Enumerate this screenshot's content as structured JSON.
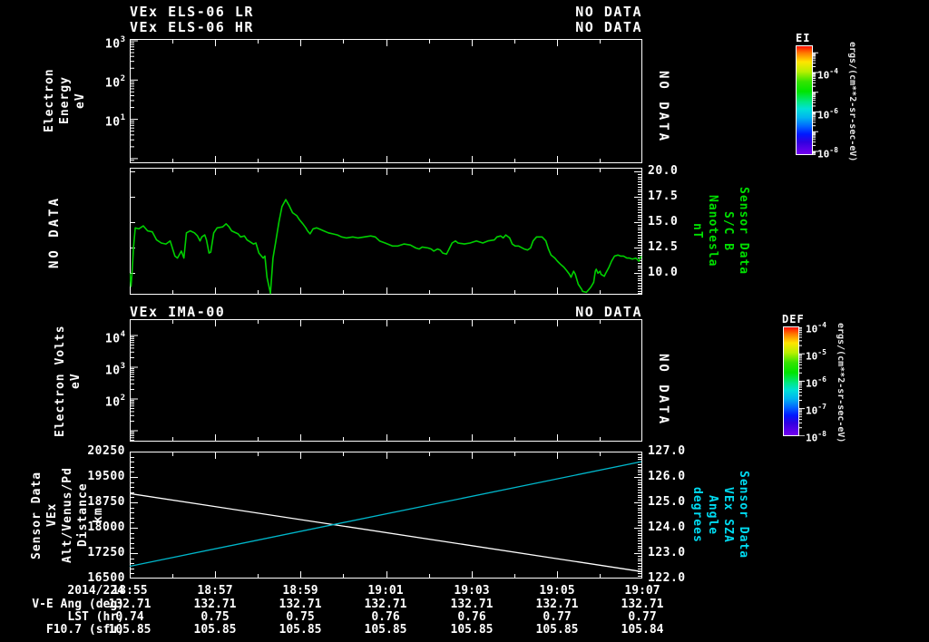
{
  "colors": {
    "background": "#000000",
    "foreground": "#ffffff",
    "mag_line": "#00cf00",
    "mag_label": "#00e000",
    "sza_line": "#00b8cc",
    "sza_label": "#00dcf2",
    "alt_line": "#ffffff"
  },
  "panel1": {
    "title_line1": "VEx ELS-06 LR",
    "status_line1": "NO DATA",
    "title_line2": "VEx ELS-06 HR",
    "status_line2": "NO DATA",
    "ylabel": "Electron Energy\neV",
    "yticks": [
      {
        "base": "10",
        "exp": "3"
      },
      {
        "base": "10",
        "exp": "2"
      },
      {
        "base": "10",
        "exp": "1"
      }
    ],
    "side_status": "NO DATA"
  },
  "panel2": {
    "left_status": "NO DATA",
    "yticks_right": [
      "20.0",
      "17.5",
      "15.0",
      "12.5",
      "10.0"
    ],
    "right_label": "Sensor Data\nS/C B\nNanotesla\nnT"
  },
  "panel3": {
    "title": "VEx IMA-00",
    "status": "NO DATA",
    "ylabel": "Electron Volts\neV",
    "yticks": [
      {
        "base": "10",
        "exp": "4"
      },
      {
        "base": "10",
        "exp": "3"
      },
      {
        "base": "10",
        "exp": "2"
      }
    ],
    "side_status": "NO DATA"
  },
  "panel4": {
    "left_label": "Sensor Data\nVEx Alt/Venus/Pd\nDistance\nkm",
    "yticks_left": [
      "20250",
      "19500",
      "18750",
      "18000",
      "17250",
      "16500"
    ],
    "yticks_right": [
      "127.0",
      "126.0",
      "125.0",
      "124.0",
      "123.0",
      "122.0"
    ],
    "right_label": "Sensor Data\nVEx SZA\nAngle\ndegrees"
  },
  "colorbars": [
    {
      "name": "EI",
      "ticks": [
        {
          "base": "10",
          "exp": "-4"
        },
        {
          "base": "10",
          "exp": "-6"
        },
        {
          "base": "10",
          "exp": "-8"
        }
      ],
      "unit": "ergs/(cm**2-sr-sec-eV)"
    },
    {
      "name": "DEF",
      "ticks": [
        {
          "base": "10",
          "exp": "-4"
        },
        {
          "base": "10",
          "exp": "-5"
        },
        {
          "base": "10",
          "exp": "-6"
        },
        {
          "base": "10",
          "exp": "-7"
        },
        {
          "base": "10",
          "exp": "-8"
        }
      ],
      "unit": "ergs/(cm**2-sr-sec-eV)"
    }
  ],
  "footer": {
    "date": "2014/224",
    "times": [
      "18:55",
      "18:57",
      "18:59",
      "19:01",
      "19:03",
      "19:05",
      "19:07"
    ],
    "rows": [
      {
        "label": "V-E Ang (deg)",
        "values": [
          "132.71",
          "132.71",
          "132.71",
          "132.71",
          "132.71",
          "132.71",
          "132.71"
        ]
      },
      {
        "label": "LST (hr)",
        "values": [
          "0.74",
          "0.75",
          "0.75",
          "0.76",
          "0.76",
          "0.77",
          "0.77"
        ]
      },
      {
        "label": "F10.7 (sfu)",
        "values": [
          "105.85",
          "105.85",
          "105.85",
          "105.85",
          "105.85",
          "105.85",
          "105.84"
        ]
      }
    ]
  },
  "chart_data": [
    {
      "type": "heatmap",
      "title": "VEx ELS-06 LR / VEx ELS-06 HR",
      "status": "NO DATA",
      "ylabel": "Electron Energy (eV)",
      "yscale": "log",
      "ylim": [
        1,
        1000
      ],
      "xlim_time": [
        "18:55",
        "19:07"
      ],
      "values": []
    },
    {
      "type": "line",
      "name": "Sensor Data S/C B",
      "ylabel": "Nanotesla (nT)",
      "color": "#00cf00",
      "ylim": [
        7.86,
        20.36
      ],
      "yticks": [
        10.0,
        12.5,
        15.0,
        17.5,
        20.0
      ],
      "x_unit": "minutes after 18:55",
      "xlim": [
        0,
        12
      ],
      "points": [
        [
          0,
          9.9
        ],
        [
          0.03,
          8.6
        ],
        [
          0.06,
          10.3
        ],
        [
          0.09,
          12.5
        ],
        [
          0.13,
          14.4
        ],
        [
          0.21,
          14.3
        ],
        [
          0.32,
          14.6
        ],
        [
          0.42,
          14.1
        ],
        [
          0.53,
          14.0
        ],
        [
          0.63,
          13.2
        ],
        [
          0.74,
          12.9
        ],
        [
          0.85,
          12.8
        ],
        [
          0.95,
          13.1
        ],
        [
          1.06,
          11.6
        ],
        [
          1.12,
          11.4
        ],
        [
          1.21,
          12.1
        ],
        [
          1.27,
          11.4
        ],
        [
          1.33,
          13.9
        ],
        [
          1.42,
          14.1
        ],
        [
          1.52,
          13.9
        ],
        [
          1.59,
          13.6
        ],
        [
          1.65,
          13.1
        ],
        [
          1.69,
          13.5
        ],
        [
          1.76,
          13.7
        ],
        [
          1.8,
          13.2
        ],
        [
          1.86,
          11.9
        ],
        [
          1.9,
          12.0
        ],
        [
          1.97,
          13.9
        ],
        [
          2.05,
          14.4
        ],
        [
          2.18,
          14.5
        ],
        [
          2.26,
          14.8
        ],
        [
          2.33,
          14.5
        ],
        [
          2.39,
          14.1
        ],
        [
          2.54,
          13.8
        ],
        [
          2.6,
          13.5
        ],
        [
          2.69,
          13.6
        ],
        [
          2.75,
          13.2
        ],
        [
          2.9,
          12.8
        ],
        [
          2.96,
          12.9
        ],
        [
          3.03,
          11.9
        ],
        [
          3.13,
          11.4
        ],
        [
          3.17,
          11.6
        ],
        [
          3.22,
          9.5
        ],
        [
          3.3,
          7.9
        ],
        [
          3.36,
          11.4
        ],
        [
          3.42,
          12.9
        ],
        [
          3.5,
          15.0
        ],
        [
          3.57,
          16.5
        ],
        [
          3.66,
          17.2
        ],
        [
          3.74,
          16.6
        ],
        [
          3.82,
          15.9
        ],
        [
          3.92,
          15.6
        ],
        [
          3.98,
          15.2
        ],
        [
          4.06,
          14.8
        ],
        [
          4.13,
          14.4
        ],
        [
          4.17,
          14.1
        ],
        [
          4.23,
          13.8
        ],
        [
          4.3,
          14.3
        ],
        [
          4.38,
          14.4
        ],
        [
          4.44,
          14.3
        ],
        [
          4.55,
          14.1
        ],
        [
          4.66,
          13.9
        ],
        [
          4.76,
          13.8
        ],
        [
          4.87,
          13.7
        ],
        [
          4.97,
          13.5
        ],
        [
          5.08,
          13.4
        ],
        [
          5.23,
          13.5
        ],
        [
          5.35,
          13.4
        ],
        [
          5.5,
          13.5
        ],
        [
          5.65,
          13.6
        ],
        [
          5.76,
          13.5
        ],
        [
          5.86,
          13.1
        ],
        [
          5.99,
          12.9
        ],
        [
          6.16,
          12.6
        ],
        [
          6.29,
          12.6
        ],
        [
          6.43,
          12.8
        ],
        [
          6.58,
          12.7
        ],
        [
          6.71,
          12.4
        ],
        [
          6.79,
          12.3
        ],
        [
          6.86,
          12.5
        ],
        [
          7.0,
          12.4
        ],
        [
          7.07,
          12.3
        ],
        [
          7.13,
          12.1
        ],
        [
          7.22,
          12.3
        ],
        [
          7.28,
          12.2
        ],
        [
          7.34,
          11.9
        ],
        [
          7.43,
          11.8
        ],
        [
          7.49,
          12.3
        ],
        [
          7.56,
          12.9
        ],
        [
          7.64,
          13.1
        ],
        [
          7.7,
          12.9
        ],
        [
          7.85,
          12.8
        ],
        [
          7.98,
          12.9
        ],
        [
          8.13,
          13.1
        ],
        [
          8.28,
          12.9
        ],
        [
          8.4,
          13.1
        ],
        [
          8.55,
          13.2
        ],
        [
          8.61,
          13.5
        ],
        [
          8.7,
          13.6
        ],
        [
          8.76,
          13.4
        ],
        [
          8.82,
          13.7
        ],
        [
          8.91,
          13.4
        ],
        [
          8.97,
          12.8
        ],
        [
          9.04,
          12.6
        ],
        [
          9.12,
          12.6
        ],
        [
          9.25,
          12.3
        ],
        [
          9.33,
          12.2
        ],
        [
          9.4,
          12.4
        ],
        [
          9.46,
          13.1
        ],
        [
          9.54,
          13.5
        ],
        [
          9.67,
          13.5
        ],
        [
          9.76,
          13.1
        ],
        [
          9.82,
          12.3
        ],
        [
          9.88,
          11.7
        ],
        [
          9.97,
          11.4
        ],
        [
          10.03,
          11.1
        ],
        [
          10.1,
          10.8
        ],
        [
          10.18,
          10.5
        ],
        [
          10.24,
          10.2
        ],
        [
          10.31,
          9.8
        ],
        [
          10.35,
          9.5
        ],
        [
          10.39,
          9.9
        ],
        [
          10.41,
          10.1
        ],
        [
          10.45,
          9.8
        ],
        [
          10.52,
          8.8
        ],
        [
          10.6,
          8.3
        ],
        [
          10.62,
          8.1
        ],
        [
          10.71,
          8.0
        ],
        [
          10.73,
          8.1
        ],
        [
          10.81,
          8.5
        ],
        [
          10.88,
          9.0
        ],
        [
          10.92,
          10.1
        ],
        [
          10.94,
          10.3
        ],
        [
          10.98,
          9.9
        ],
        [
          11.03,
          10.1
        ],
        [
          11.05,
          9.8
        ],
        [
          11.13,
          9.6
        ],
        [
          11.15,
          9.8
        ],
        [
          11.24,
          10.5
        ],
        [
          11.3,
          11.1
        ],
        [
          11.37,
          11.6
        ],
        [
          11.45,
          11.7
        ],
        [
          11.51,
          11.6
        ],
        [
          11.58,
          11.6
        ],
        [
          11.66,
          11.4
        ],
        [
          11.72,
          11.4
        ],
        [
          11.79,
          11.3
        ],
        [
          11.87,
          11.4
        ],
        [
          11.94,
          11.1
        ],
        [
          12,
          11.6
        ]
      ]
    },
    {
      "type": "heatmap",
      "title": "VEx IMA-00",
      "status": "NO DATA",
      "ylabel": "Electron Volts (eV)",
      "yscale": "log",
      "ylim": [
        100,
        10000
      ],
      "xlim_time": [
        "18:55",
        "19:07"
      ],
      "values": []
    },
    {
      "type": "line",
      "x_unit": "minutes after 18:55",
      "xlim": [
        0,
        12
      ],
      "ylim_left": [
        16500,
        20250
      ],
      "ylim_right": [
        122,
        127
      ],
      "yticks_left": [
        16500,
        17250,
        18000,
        18750,
        19500,
        20250
      ],
      "yticks_right": [
        122.0,
        123.0,
        124.0,
        125.0,
        126.0,
        127.0
      ],
      "series": [
        {
          "name": "VEx Alt/Venus/Pd Distance (km)",
          "axis": "left",
          "color": "#ffffff",
          "points": [
            [
              0,
              19000
            ],
            [
              12,
              16680
            ]
          ]
        },
        {
          "name": "VEx SZA Angle (degrees)",
          "axis": "right",
          "color": "#00b8cc",
          "points": [
            [
              0,
              122.45
            ],
            [
              12,
              126.6
            ]
          ]
        }
      ]
    }
  ]
}
